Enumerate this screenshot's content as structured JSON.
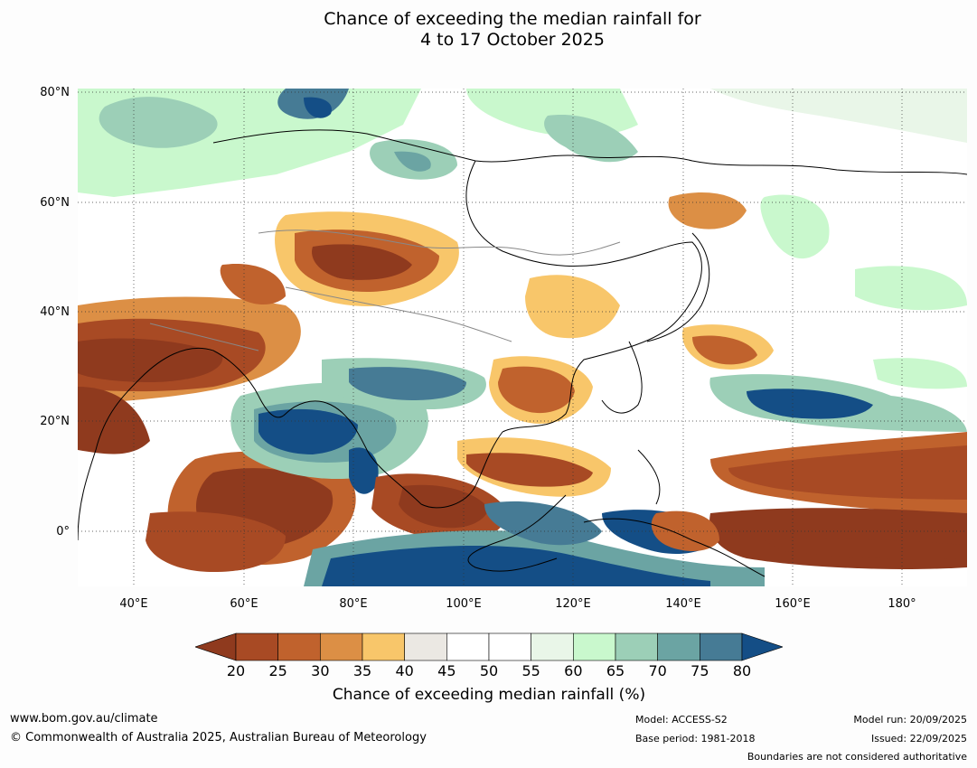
{
  "title": {
    "line1": "Chance of exceeding the median rainfall for",
    "line2": "4 to 17 October 2025"
  },
  "map": {
    "lat_labels": [
      "80°N",
      "60°N",
      "40°N",
      "20°N",
      "0°"
    ],
    "lon_labels": [
      "40°E",
      "60°E",
      "80°E",
      "100°E",
      "120°E",
      "140°E",
      "160°E",
      "180°"
    ],
    "category_colors": {
      "lt20": "#8f3a1e",
      "20-25": "#a84a24",
      "25-30": "#c0622d",
      "30-35": "#dc8f45",
      "35-40": "#f8c66a",
      "40-45": "#ebe8e3",
      "45-50": "#ffffff",
      "50-55": "#ffffff",
      "55-60": "#e9f6e8",
      "60-65": "#c9f8cd",
      "65-70": "#9ccfb7",
      "70-75": "#6ba4a3",
      "75-80": "#467b95",
      "gt80": "#144e86"
    }
  },
  "colorbar": {
    "ticks": [
      "20",
      "25",
      "30",
      "35",
      "40",
      "45",
      "50",
      "55",
      "60",
      "65",
      "70",
      "75",
      "80"
    ],
    "colors": [
      "#a84a24",
      "#c0622d",
      "#dc8f45",
      "#f8c66a",
      "#ebe8e3",
      "#ffffff",
      "#ffffff",
      "#e9f6e8",
      "#c9f8cd",
      "#9ccfb7",
      "#6ba4a3",
      "#467b95"
    ],
    "under_color": "#8f3a1e",
    "over_color": "#144e86",
    "label": "Chance of exceeding median rainfall (%)"
  },
  "footer": {
    "website": "www.bom.gov.au/climate",
    "copyright": "© Commonwealth of Australia 2025, Australian Bureau of Meteorology",
    "model": "Model: ACCESS-S2",
    "base_period": "Base period: 1981-2018",
    "model_run": "Model run: 20/09/2025",
    "issued": "Issued: 22/09/2025",
    "disclaimer": "Boundaries are not considered authoritative"
  }
}
